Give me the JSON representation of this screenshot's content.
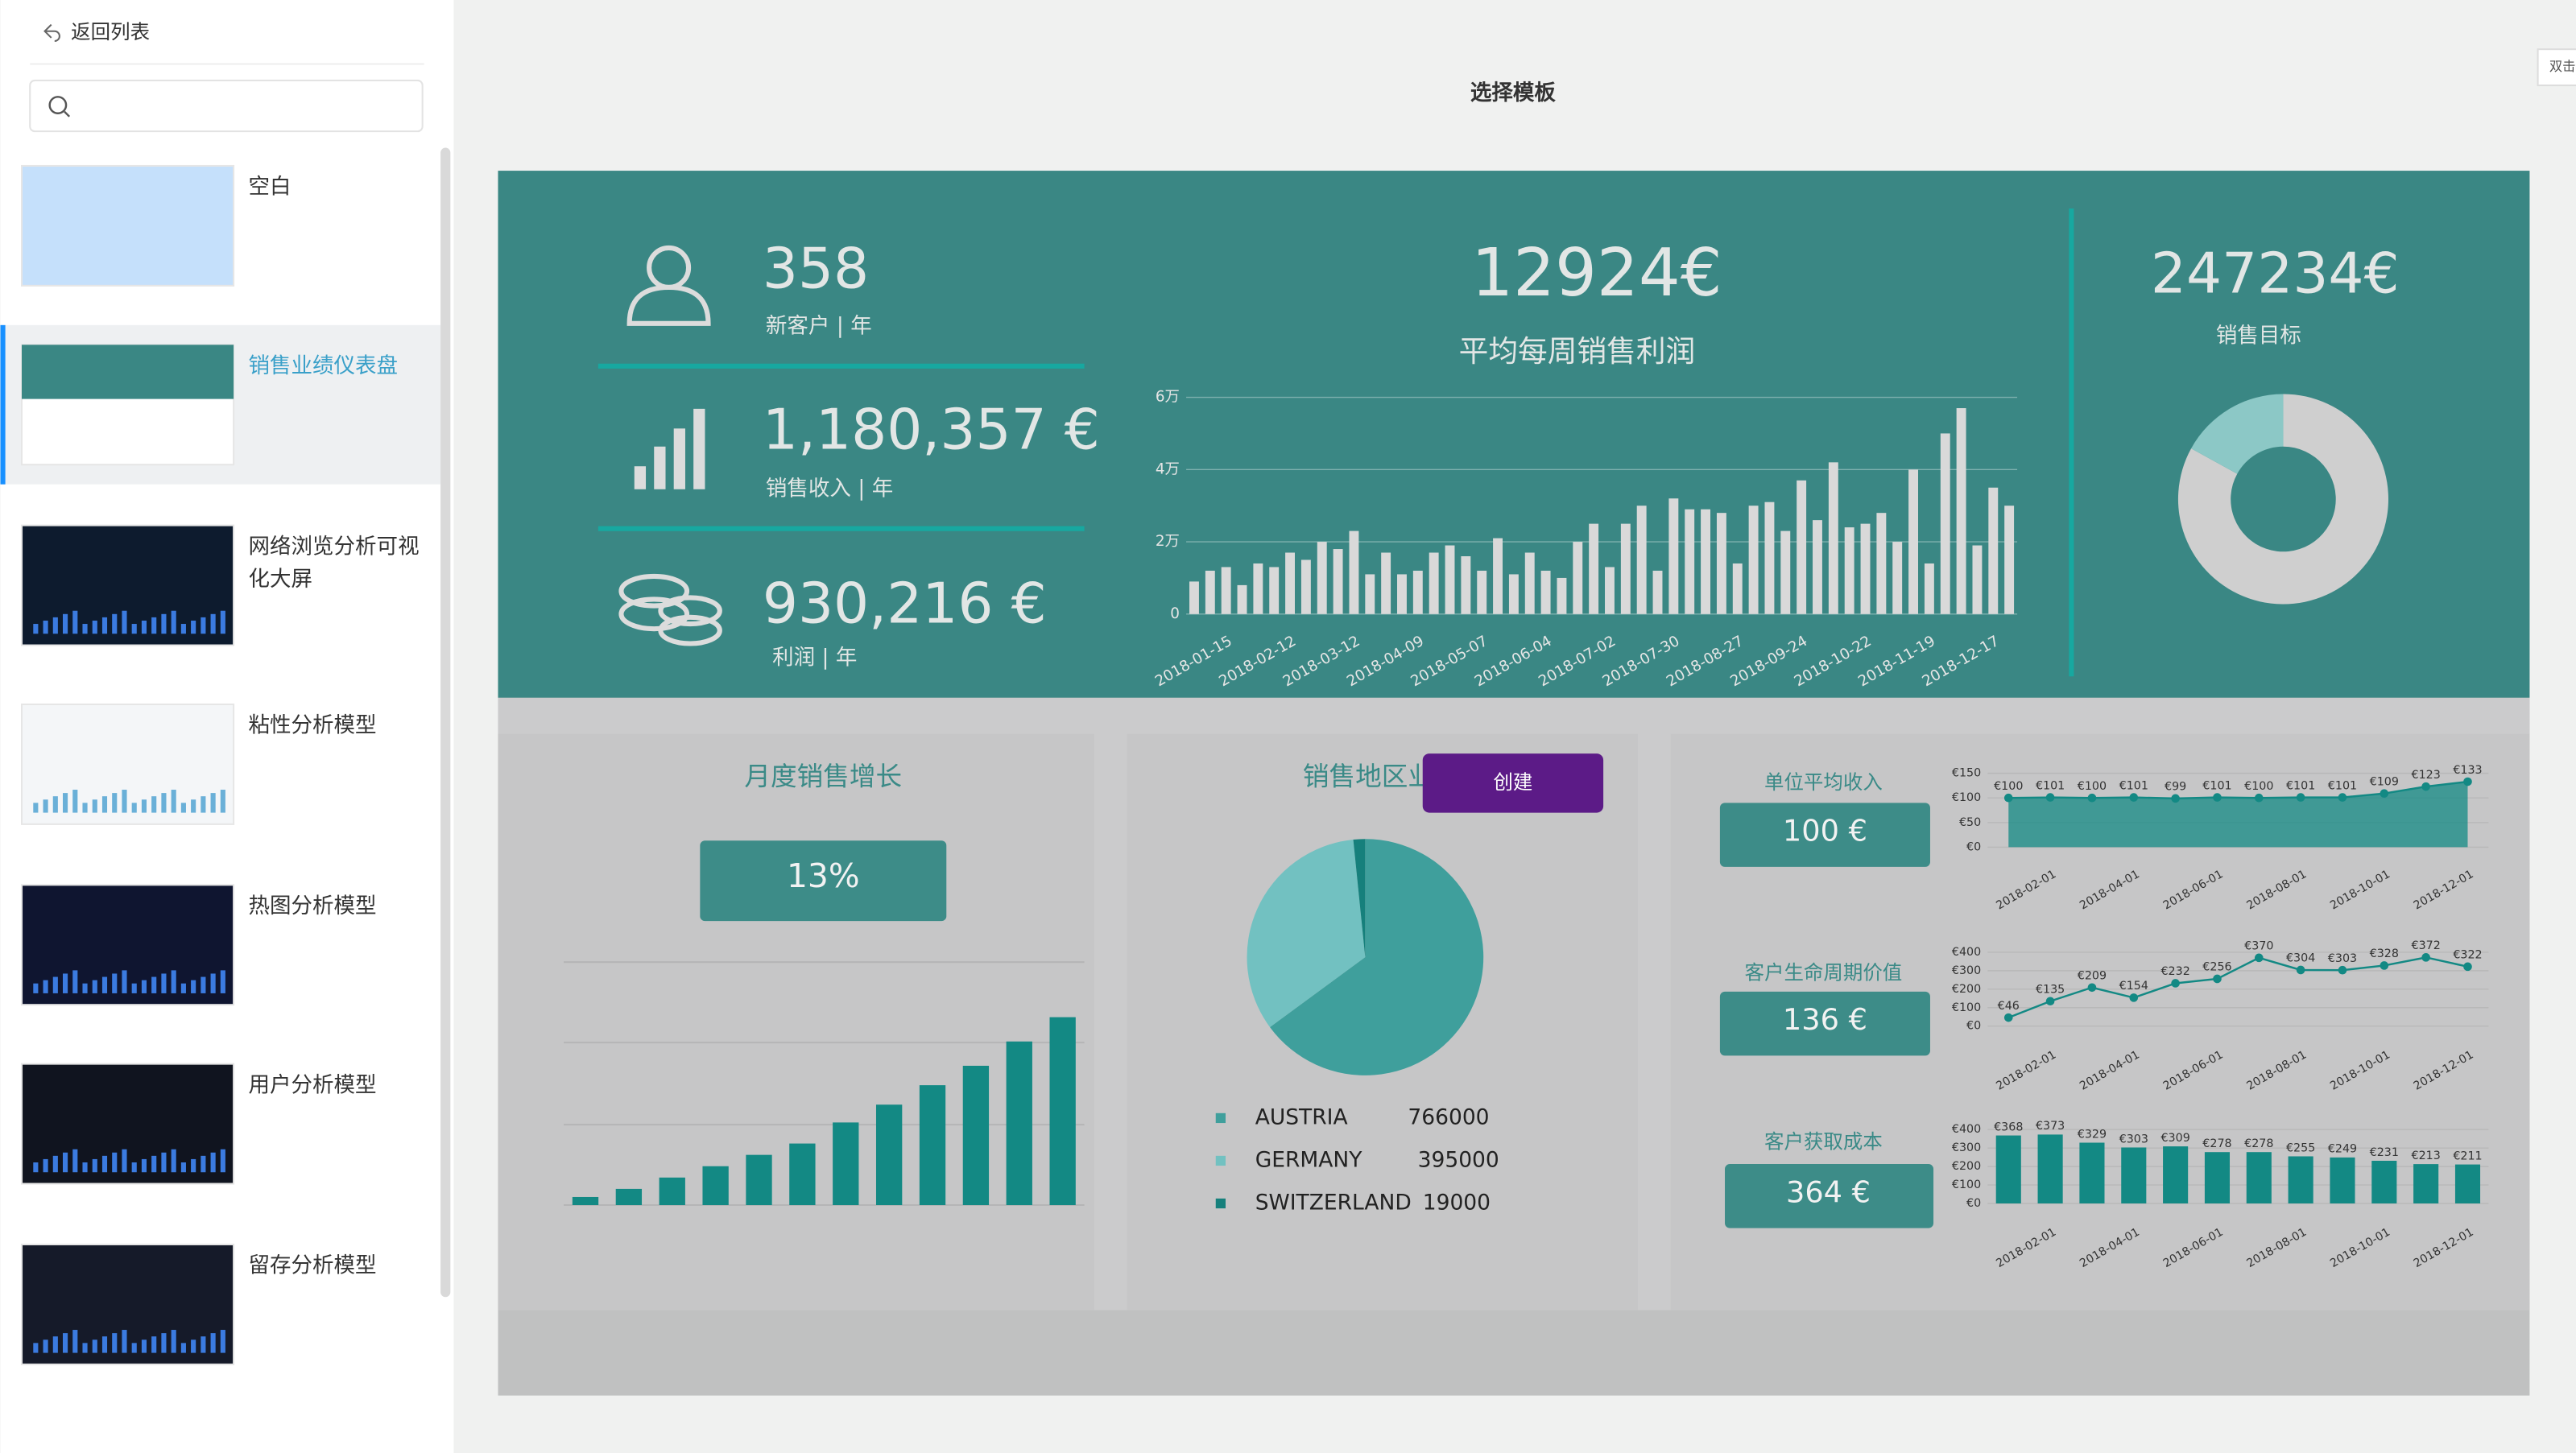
{
  "sidebar": {
    "back": "返回列表",
    "templates": [
      {
        "name": "空白"
      },
      {
        "name": "销售业绩仪表盘",
        "selected": true
      },
      {
        "name": "网络浏览分析可视化大屏"
      },
      {
        "name": "粘性分析模型"
      },
      {
        "name": "热图分析模型"
      },
      {
        "name": "用户分析模型"
      },
      {
        "name": "留存分析模型"
      }
    ]
  },
  "header": {
    "title": "选择模板",
    "hint": "双击"
  },
  "create_button": "创建",
  "dashboard": {
    "kpis": [
      {
        "value": "358",
        "label": "新客户 | 年"
      },
      {
        "value": "1,180,357 €",
        "label": "销售收入 | 年"
      },
      {
        "value": "930,216 €",
        "label": "利润 | 年"
      }
    ],
    "weekly": {
      "value": "12924€",
      "label": "平均每周销售利润"
    },
    "target": {
      "value": "247234€",
      "label": "销售目标"
    },
    "growth_kpi": "13%",
    "small_kpis": [
      "100 €",
      "136 €",
      "364 €"
    ]
  },
  "chart_data": [
    {
      "type": "bar",
      "color": "#d9d9d9",
      "grid": true,
      "categories": [
        null,
        null,
        "2018-01-15",
        null,
        null,
        null,
        "2018-02-12",
        null,
        null,
        null,
        "2018-03-12",
        null,
        null,
        null,
        "2018-04-09",
        null,
        null,
        null,
        "2018-05-07",
        null,
        null,
        null,
        "2018-06-04",
        null,
        null,
        null,
        "2018-07-02",
        null,
        null,
        null,
        "2018-07-30",
        null,
        null,
        null,
        "2018-08-27",
        null,
        null,
        null,
        "2018-09-24",
        null,
        null,
        null,
        "2018-10-22",
        null,
        null,
        null,
        "2018-11-19",
        null,
        null,
        null,
        "2018-12-17",
        null
      ],
      "values": [
        9000,
        12000,
        13000,
        8000,
        14000,
        13000,
        17000,
        15000,
        20000,
        18000,
        23000,
        11000,
        17000,
        11000,
        12000,
        17000,
        19000,
        16000,
        12000,
        21000,
        11000,
        17000,
        12000,
        10000,
        20000,
        25000,
        13000,
        25000,
        30000,
        12000,
        32000,
        29000,
        29000,
        28000,
        14000,
        30000,
        31000,
        23000,
        37000,
        26000,
        42000,
        24000,
        25000,
        28000,
        20000,
        40000,
        14000,
        50000,
        57000,
        19000,
        35000,
        30000
      ],
      "ylim": [
        0,
        60000
      ],
      "yticks": [
        0,
        {
          "value": 20000,
          "label": "2万"
        },
        {
          "value": 40000,
          "label": "4万"
        },
        {
          "value": 60000,
          "label": "6万"
        }
      ]
    },
    {
      "type": "donut",
      "values": [
        83,
        17
      ],
      "colors": [
        "#cfcfcf",
        "#8cc8c6"
      ]
    },
    {
      "type": "bar",
      "title": "月度销售增长",
      "color": "#138984",
      "categories": [
        null,
        null,
        null,
        null,
        null,
        null,
        null,
        null,
        null,
        null,
        null,
        null
      ],
      "values": [
        5,
        10,
        17,
        24,
        31,
        38,
        51,
        62,
        74,
        86,
        101,
        116
      ],
      "ylim": [
        0,
        150
      ]
    },
    {
      "type": "pie",
      "title": "销售地区业绩",
      "categories": [
        "AUSTRIA",
        "GERMANY",
        "SWITZERLAND"
      ],
      "values": [
        766000,
        395000,
        19000
      ],
      "colors": [
        "#3f9f9c",
        "#72c1c1",
        "#16807c"
      ]
    },
    {
      "type": "line",
      "title": "单位平均收入",
      "color": "#138984",
      "area": true,
      "grid": true,
      "categories": [
        null,
        "2018-02-01",
        null,
        "2018-04-01",
        null,
        "2018-06-01",
        null,
        "2018-08-01",
        null,
        "2018-10-01",
        null,
        "2018-12-01"
      ],
      "values": [
        100,
        101,
        100,
        101,
        99,
        101,
        100,
        101,
        101,
        109,
        123,
        133
      ],
      "value_labels": [
        "€100",
        "€101",
        "€100",
        "€101",
        "€99",
        "€101",
        "€100",
        "€101",
        "€101",
        "€109",
        "€123",
        "€133"
      ],
      "ylim": [
        0,
        150
      ],
      "yticks": [
        {
          "value": 0,
          "label": "€0"
        },
        {
          "value": 50,
          "label": "€50"
        },
        {
          "value": 100,
          "label": "€100"
        },
        {
          "value": 150,
          "label": "€150"
        }
      ]
    },
    {
      "type": "line",
      "title": "客户生命周期价值",
      "color": "#138984",
      "area": false,
      "grid": true,
      "categories": [
        null,
        "2018-02-01",
        null,
        "2018-04-01",
        null,
        "2018-06-01",
        null,
        "2018-08-01",
        null,
        "2018-10-01",
        null,
        "2018-12-01"
      ],
      "values": [
        46,
        135,
        209,
        154,
        232,
        256,
        370,
        304,
        303,
        328,
        372,
        322
      ],
      "value_labels": [
        "€46",
        "€135",
        "€209",
        "€154",
        "€232",
        "€256",
        "€370",
        "€304",
        "€303",
        "€328",
        "€372",
        "€322"
      ],
      "ylim": [
        0,
        400
      ],
      "yticks": [
        {
          "value": 0,
          "label": "€0"
        },
        {
          "value": 100,
          "label": "€100"
        },
        {
          "value": 200,
          "label": "€200"
        },
        {
          "value": 300,
          "label": "€300"
        },
        {
          "value": 400,
          "label": "€400"
        }
      ]
    },
    {
      "type": "bar",
      "title": "客户获取成本",
      "color": "#138984",
      "grid": true,
      "categories": [
        null,
        "2018-02-01",
        null,
        "2018-04-01",
        null,
        "2018-06-01",
        null,
        "2018-08-01",
        null,
        "2018-10-01",
        null,
        "2018-12-01"
      ],
      "values": [
        368,
        373,
        329,
        303,
        309,
        278,
        278,
        255,
        249,
        231,
        213,
        211
      ],
      "value_labels": [
        "€368",
        "€373",
        "€329",
        "€303",
        "€309",
        "€278",
        "€278",
        "€255",
        "€249",
        "€231",
        "€213",
        "€211"
      ],
      "ylim": [
        0,
        400
      ],
      "yticks": [
        {
          "value": 0,
          "label": "€0"
        },
        {
          "value": 100,
          "label": "€100"
        },
        {
          "value": 200,
          "label": "€200"
        },
        {
          "value": 300,
          "label": "€300"
        },
        {
          "value": 400,
          "label": "€400"
        }
      ]
    }
  ]
}
